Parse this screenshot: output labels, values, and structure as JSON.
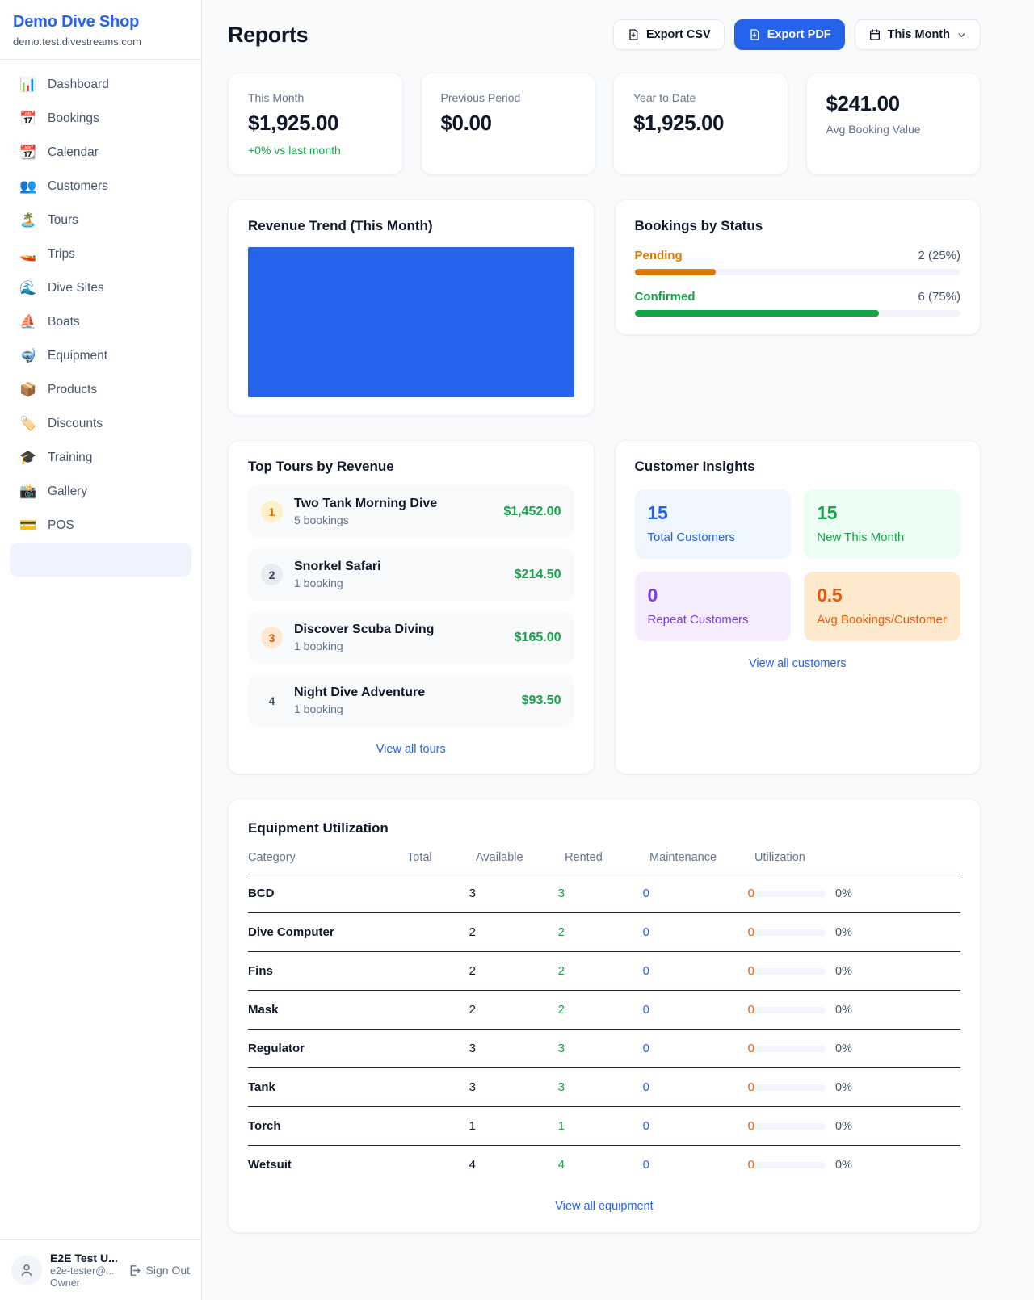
{
  "app": {
    "name": "Demo Dive Shop",
    "domain": "demo.test.divestreams.com"
  },
  "sidebar": {
    "items": [
      {
        "label": "Dashboard",
        "icon": "📊"
      },
      {
        "label": "Bookings",
        "icon": "📅"
      },
      {
        "label": "Calendar",
        "icon": "📆"
      },
      {
        "label": "Customers",
        "icon": "👥"
      },
      {
        "label": "Tours",
        "icon": "🏝️"
      },
      {
        "label": "Trips",
        "icon": "🚤"
      },
      {
        "label": "Dive Sites",
        "icon": "🌊"
      },
      {
        "label": "Boats",
        "icon": "⛵"
      },
      {
        "label": "Equipment",
        "icon": "🤿"
      },
      {
        "label": "Products",
        "icon": "📦"
      },
      {
        "label": "Discounts",
        "icon": "🏷️"
      },
      {
        "label": "Training",
        "icon": "🎓"
      },
      {
        "label": "Gallery",
        "icon": "📸"
      },
      {
        "label": "POS",
        "icon": "💳"
      }
    ],
    "user": {
      "name": "E2E Test U...",
      "email": "e2e-tester@...",
      "role": "Owner",
      "sign_out_label": "Sign Out"
    }
  },
  "header": {
    "title": "Reports",
    "export_csv_label": "Export CSV",
    "export_pdf_label": "Export PDF",
    "period_label": "This Month"
  },
  "stats": [
    {
      "label": "This Month",
      "value": "$1,925.00",
      "delta": "+0% vs last month"
    },
    {
      "label": "Previous Period",
      "value": "$0.00"
    },
    {
      "label": "Year to Date",
      "value": "$1,925.00"
    },
    {
      "label": "Avg Booking Value",
      "value": "$241.00"
    }
  ],
  "revenue_trend": {
    "title": "Revenue Trend (This Month)",
    "bar_color": "#2563eb"
  },
  "bookings_by_status": {
    "title": "Bookings by Status",
    "items": [
      {
        "label": "Pending",
        "count_text": "2 (25%)",
        "pct": 25,
        "color": "#d97706"
      },
      {
        "label": "Confirmed",
        "count_text": "6 (75%)",
        "pct": 75,
        "color": "#16a34a"
      }
    ]
  },
  "chart_data": [
    {
      "type": "bar",
      "title": "Revenue Trend (This Month)",
      "categories": [
        "This Month"
      ],
      "values": [
        1925
      ],
      "color": "#2563eb",
      "note_axes": "no axes or tick labels shown; single full-width bar"
    },
    {
      "type": "bar",
      "title": "Bookings by Status",
      "categories": [
        "Pending",
        "Confirmed"
      ],
      "values": [
        2,
        6
      ],
      "percentages": [
        25,
        75
      ],
      "colors": [
        "#d97706",
        "#16a34a"
      ],
      "orientation": "horizontal-progress"
    }
  ],
  "top_tours": {
    "title": "Top Tours by Revenue",
    "view_all": "View all tours",
    "items": [
      {
        "rank": "1",
        "name": "Two Tank Morning Dive",
        "bookings": "5 bookings",
        "revenue": "$1,452.00"
      },
      {
        "rank": "2",
        "name": "Snorkel Safari",
        "bookings": "1 booking",
        "revenue": "$214.50"
      },
      {
        "rank": "3",
        "name": "Discover Scuba Diving",
        "bookings": "1 booking",
        "revenue": "$165.00"
      },
      {
        "rank": "4",
        "name": "Night Dive Adventure",
        "bookings": "1 booking",
        "revenue": "$93.50"
      }
    ]
  },
  "customer_insights": {
    "title": "Customer Insights",
    "view_all": "View all customers",
    "tiles": [
      {
        "value": "15",
        "label": "Total Customers"
      },
      {
        "value": "15",
        "label": "New This Month"
      },
      {
        "value": "0",
        "label": "Repeat Customers"
      },
      {
        "value": "0.5",
        "label": "Avg Bookings/Customer"
      }
    ]
  },
  "equipment": {
    "title": "Equipment Utilization",
    "view_all": "View all equipment",
    "columns": [
      "Category",
      "Total",
      "Available",
      "Rented",
      "Maintenance",
      "Utilization"
    ],
    "rows": [
      {
        "category": "BCD",
        "total": "3",
        "available": "3",
        "rented": "0",
        "maintenance": "0",
        "utilization": "0%"
      },
      {
        "category": "Dive Computer",
        "total": "2",
        "available": "2",
        "rented": "0",
        "maintenance": "0",
        "utilization": "0%"
      },
      {
        "category": "Fins",
        "total": "2",
        "available": "2",
        "rented": "0",
        "maintenance": "0",
        "utilization": "0%"
      },
      {
        "category": "Mask",
        "total": "2",
        "available": "2",
        "rented": "0",
        "maintenance": "0",
        "utilization": "0%"
      },
      {
        "category": "Regulator",
        "total": "3",
        "available": "3",
        "rented": "0",
        "maintenance": "0",
        "utilization": "0%"
      },
      {
        "category": "Tank",
        "total": "3",
        "available": "3",
        "rented": "0",
        "maintenance": "0",
        "utilization": "0%"
      },
      {
        "category": "Torch",
        "total": "1",
        "available": "1",
        "rented": "0",
        "maintenance": "0",
        "utilization": "0%"
      },
      {
        "category": "Wetsuit",
        "total": "4",
        "available": "4",
        "rented": "0",
        "maintenance": "0",
        "utilization": "0%"
      }
    ]
  },
  "colors": {
    "brand_blue": "#2563eb",
    "green": "#16a34a",
    "pending_orange": "#d97706",
    "maintenance_orange": "#ea580c",
    "purple": "#7c3aed"
  }
}
